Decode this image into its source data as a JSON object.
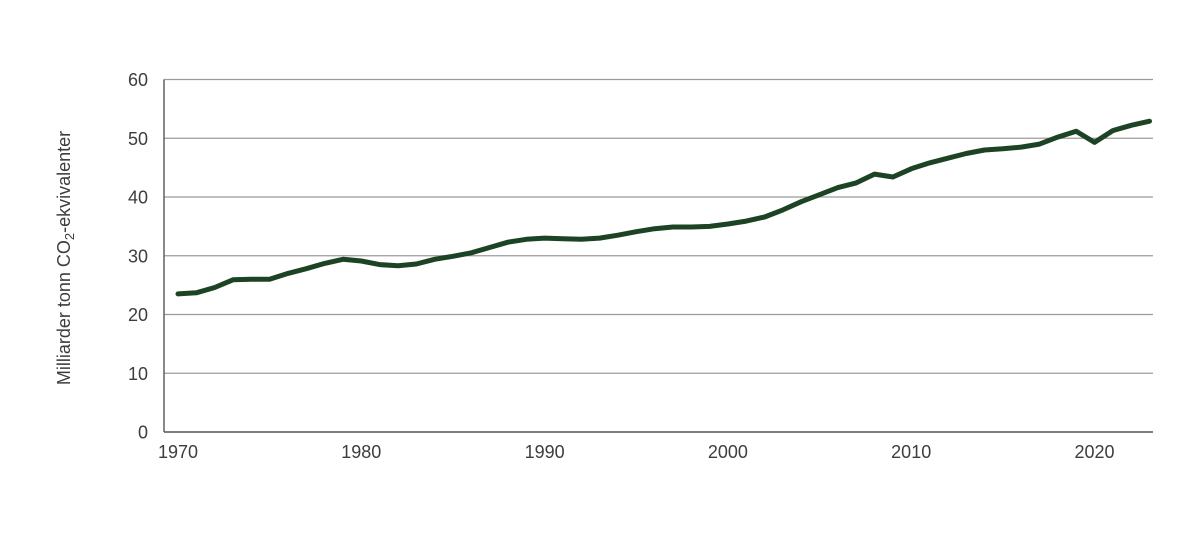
{
  "chart_data": {
    "type": "line",
    "title": "",
    "xlabel": "",
    "ylabel": {
      "pre_sub": "Milliarder tonn CO",
      "sub": "2",
      "post_sub": "-ekvivalenter"
    },
    "x": [
      1970,
      1971,
      1972,
      1973,
      1974,
      1975,
      1976,
      1977,
      1978,
      1979,
      1980,
      1981,
      1982,
      1983,
      1984,
      1985,
      1986,
      1987,
      1988,
      1989,
      1990,
      1991,
      1992,
      1993,
      1994,
      1995,
      1996,
      1997,
      1998,
      1999,
      2000,
      2001,
      2002,
      2003,
      2004,
      2005,
      2006,
      2007,
      2008,
      2009,
      2010,
      2011,
      2012,
      2013,
      2014,
      2015,
      2016,
      2017,
      2018,
      2019,
      2020,
      2021,
      2022,
      2023
    ],
    "values": [
      23.5,
      23.7,
      24.6,
      25.9,
      26.0,
      26.0,
      27.0,
      27.8,
      28.7,
      29.4,
      29.1,
      28.5,
      28.3,
      28.6,
      29.4,
      29.9,
      30.5,
      31.4,
      32.3,
      32.8,
      33.0,
      32.9,
      32.8,
      33.0,
      33.5,
      34.1,
      34.6,
      34.9,
      34.9,
      35.0,
      35.4,
      35.9,
      36.6,
      37.8,
      39.2,
      40.4,
      41.6,
      42.4,
      43.9,
      43.4,
      44.8,
      45.8,
      46.6,
      47.4,
      48.0,
      48.2,
      48.5,
      49.0,
      50.2,
      51.2,
      49.3,
      51.3,
      52.2,
      52.9
    ],
    "ylim": [
      0,
      60
    ],
    "yticks": [
      0,
      10,
      20,
      30,
      40,
      50,
      60
    ],
    "xticks": [
      1970,
      1980,
      1990,
      2000,
      2010,
      2020
    ],
    "grid": true,
    "legend": false,
    "colors": {
      "line": "#1d4325",
      "grid": "#9b9b9b",
      "axis": "#555555",
      "text": "#3d3d3d"
    }
  }
}
